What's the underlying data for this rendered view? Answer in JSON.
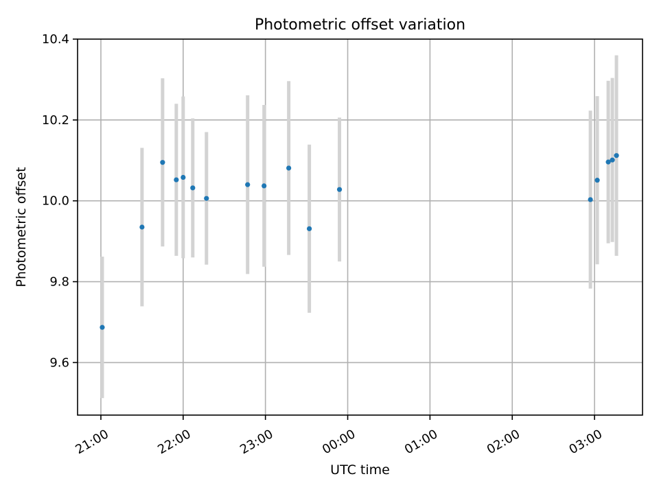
{
  "chart_data": {
    "type": "scatter",
    "title": "Photometric offset variation",
    "xlabel": "UTC time",
    "ylabel": "Photometric offset",
    "x_is_time": true,
    "xlim": [
      "20:43",
      "03:35"
    ],
    "ylim": [
      9.47,
      10.4
    ],
    "x_ticks": [
      "21:00",
      "22:00",
      "23:00",
      "00:00",
      "01:00",
      "02:00",
      "03:00"
    ],
    "y_ticks": [
      9.6,
      9.8,
      10.0,
      10.2,
      10.4
    ],
    "y_tick_labels": [
      "9.6",
      "9.8",
      "10.0",
      "10.2",
      "10.4"
    ],
    "grid": true,
    "marker_color": "#1f77b4",
    "errorbar_color": "#d3d3d3",
    "points": [
      {
        "x": "21:01",
        "y": 9.687,
        "yerr": 0.175
      },
      {
        "x": "21:30",
        "y": 9.935,
        "yerr": 0.196
      },
      {
        "x": "21:45",
        "y": 10.095,
        "yerr": 0.208
      },
      {
        "x": "21:55",
        "y": 10.052,
        "yerr": 0.188
      },
      {
        "x": "22:00",
        "y": 10.058,
        "yerr": 0.2
      },
      {
        "x": "22:07",
        "y": 10.032,
        "yerr": 0.172
      },
      {
        "x": "22:17",
        "y": 10.006,
        "yerr": 0.164
      },
      {
        "x": "22:47",
        "y": 10.04,
        "yerr": 0.221
      },
      {
        "x": "22:59",
        "y": 10.037,
        "yerr": 0.2
      },
      {
        "x": "23:17",
        "y": 10.081,
        "yerr": 0.215
      },
      {
        "x": "23:32",
        "y": 9.931,
        "yerr": 0.208
      },
      {
        "x": "23:54",
        "y": 10.028,
        "yerr": 0.178
      },
      {
        "x": "02:57",
        "y": 10.003,
        "yerr": 0.22
      },
      {
        "x": "03:02",
        "y": 10.051,
        "yerr": 0.208
      },
      {
        "x": "03:10",
        "y": 10.096,
        "yerr": 0.201
      },
      {
        "x": "03:13",
        "y": 10.101,
        "yerr": 0.203
      },
      {
        "x": "03:16",
        "y": 10.112,
        "yerr": 0.248
      }
    ]
  }
}
